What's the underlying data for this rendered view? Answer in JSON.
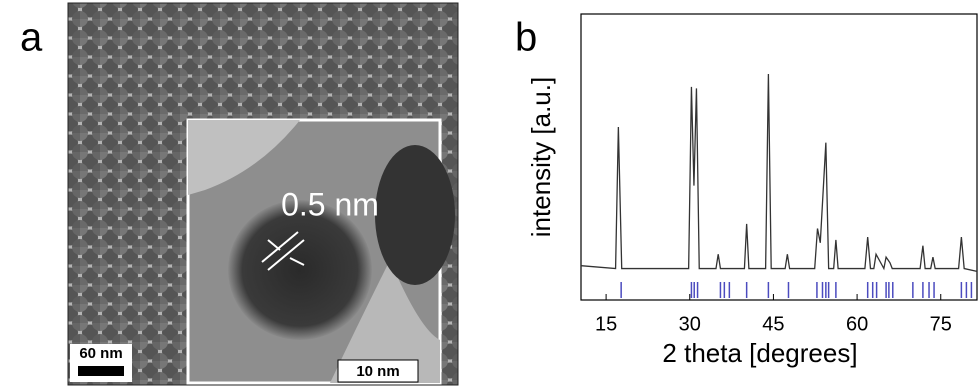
{
  "panels": {
    "a": {
      "label": "a",
      "scale_bar": "60 nm",
      "inset_scale_bar": "10 nm",
      "annotation": "0.5 nm"
    }
  },
  "chart_data": {
    "type": "line",
    "panel_label": "b",
    "x_label": "2 theta [degrees]",
    "y_label": "intensity [a.u.]",
    "xlim": [
      10.5,
      81.5
    ],
    "xticks": [
      15,
      30,
      45,
      60,
      75
    ],
    "ylim": [
      0,
      100
    ],
    "color": "#333333",
    "x": [
      10.5,
      16.7,
      17.2,
      17.8,
      29.8,
      30.3,
      30.75,
      31.2,
      31.7,
      34.7,
      35.1,
      35.5,
      39.8,
      40.2,
      40.6,
      43.6,
      44.1,
      44.6,
      47.1,
      47.5,
      47.9,
      52.4,
      52.9,
      53.4,
      54.4,
      54.9,
      55.8,
      56.2,
      56.6,
      61.4,
      61.9,
      62.4,
      63.0,
      63.4,
      64.8,
      65.2,
      65.9,
      66.3,
      71.3,
      71.8,
      72.2,
      73.2,
      73.6,
      74.0,
      78.2,
      78.7,
      79.2,
      81.5
    ],
    "values": [
      12,
      11,
      60.5,
      11,
      11,
      74.5,
      40,
      74,
      11,
      11,
      16,
      11,
      11,
      26.6,
      11,
      11,
      79,
      11,
      11,
      16,
      11,
      11,
      25,
      20,
      55,
      11,
      11,
      21,
      11,
      11,
      22,
      11,
      11,
      16,
      11,
      15,
      13,
      11,
      11,
      19,
      11,
      11,
      15,
      11,
      11,
      22,
      11,
      10
    ],
    "reference": {
      "color": "#4b4bbf",
      "x": [
        17.7,
        30.3,
        30.8,
        31.4,
        35.5,
        36.2,
        37.1,
        40.2,
        44.1,
        47.7,
        52.8,
        53.8,
        54.4,
        54.9,
        56.2,
        61.9,
        62.8,
        63.5,
        65.2,
        65.7,
        66.4,
        70.0,
        71.8,
        72.9,
        73.8,
        78.7,
        79.6,
        80.5
      ]
    }
  }
}
